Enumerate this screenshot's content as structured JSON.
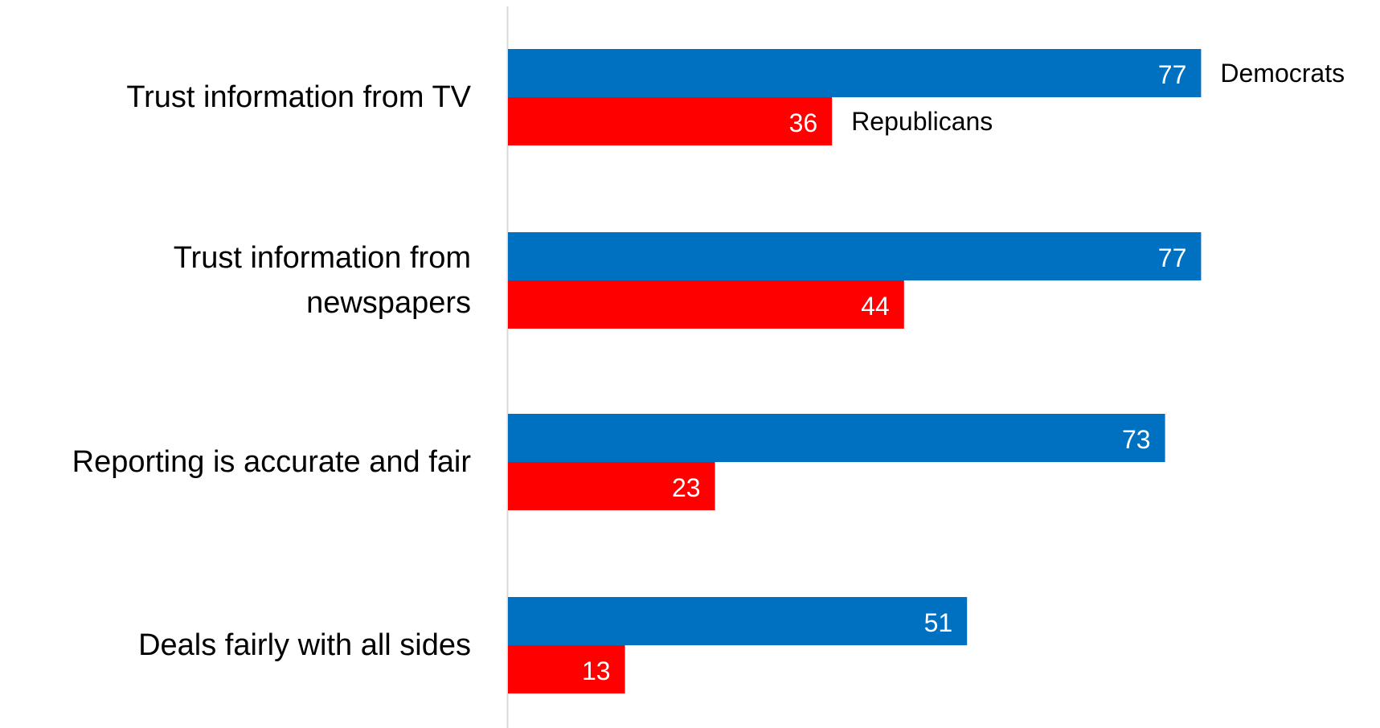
{
  "chart_data": {
    "type": "bar",
    "orientation": "horizontal",
    "categories": [
      [
        "Trust information from TV"
      ],
      [
        "Trust information from",
        "newspapers"
      ],
      [
        "Reporting is accurate and fair"
      ],
      [
        "Deals fairly with all sides"
      ]
    ],
    "series": [
      {
        "name": "Democrats",
        "color": "#0070C0",
        "values": [
          77,
          77,
          73,
          51
        ]
      },
      {
        "name": "Republicans",
        "color": "#FF0000",
        "values": [
          36,
          44,
          23,
          13
        ]
      }
    ],
    "xlim": [
      0,
      100
    ],
    "grid": false,
    "legend": "inline labels next to first category bars"
  }
}
